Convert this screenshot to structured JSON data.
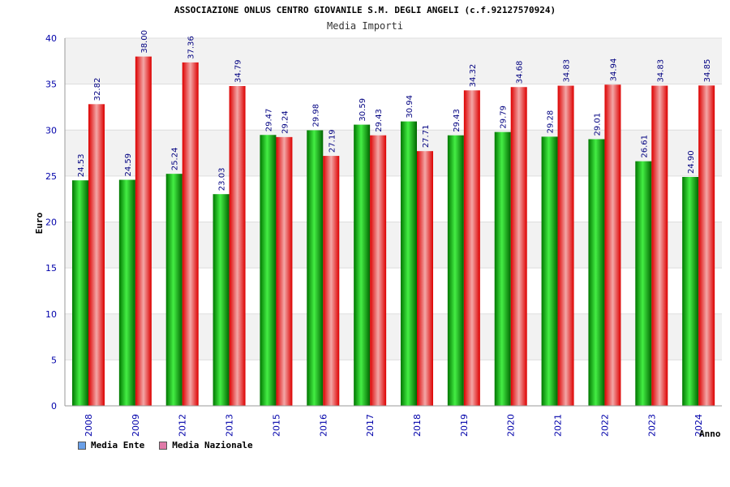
{
  "chart_data": {
    "type": "bar",
    "title": "ASSOCIAZIONE ONLUS CENTRO GIOVANILE S.M. DEGLI ANGELI (c.f.92127570924)",
    "subtitle": "Media Importi",
    "xlabel": "Anno",
    "ylabel": "Euro",
    "ylim": [
      0,
      40
    ],
    "yticks": [
      0,
      5,
      10,
      15,
      20,
      25,
      30,
      35,
      40
    ],
    "categories": [
      "2008",
      "2009",
      "2012",
      "2013",
      "2015",
      "2016",
      "2017",
      "2018",
      "2019",
      "2020",
      "2021",
      "2022",
      "2023",
      "2024"
    ],
    "series": [
      {
        "name": "Media Ente",
        "values": [
          24.53,
          24.59,
          25.24,
          23.03,
          29.47,
          29.98,
          30.59,
          30.94,
          29.43,
          29.79,
          29.28,
          29.01,
          26.61,
          24.9
        ],
        "labels": [
          "24.53",
          "24.59",
          "25.24",
          "23.03",
          "29.47",
          "29.98",
          "30.59",
          "30.94",
          "29.43",
          "29.79",
          "29.28",
          "29.01",
          "26.61",
          "24.90"
        ]
      },
      {
        "name": "Media Nazionale",
        "values": [
          32.82,
          38.0,
          37.36,
          34.79,
          29.24,
          27.19,
          29.43,
          27.71,
          34.32,
          34.68,
          34.83,
          34.94,
          34.83,
          34.85
        ],
        "labels": [
          "32.82",
          "38.00",
          "37.36",
          "34.79",
          "29.24",
          "27.19",
          "29.43",
          "27.71",
          "34.32",
          "34.68",
          "34.83",
          "34.94",
          "34.83",
          "34.85"
        ]
      }
    ],
    "legend": {
      "position": "bottom-left",
      "items": [
        {
          "label": "Media Ente",
          "color": "#6aa0e8"
        },
        {
          "label": "Media Nazionale",
          "color": "#e07aa8"
        }
      ]
    },
    "colors": {
      "ente_dark": "#006600",
      "ente_light": "#33dd33",
      "naz_dark": "#cc0000",
      "naz_light": "#f0a0a0",
      "axis_text": "#0000aa",
      "band": "#f2f2f2"
    }
  }
}
